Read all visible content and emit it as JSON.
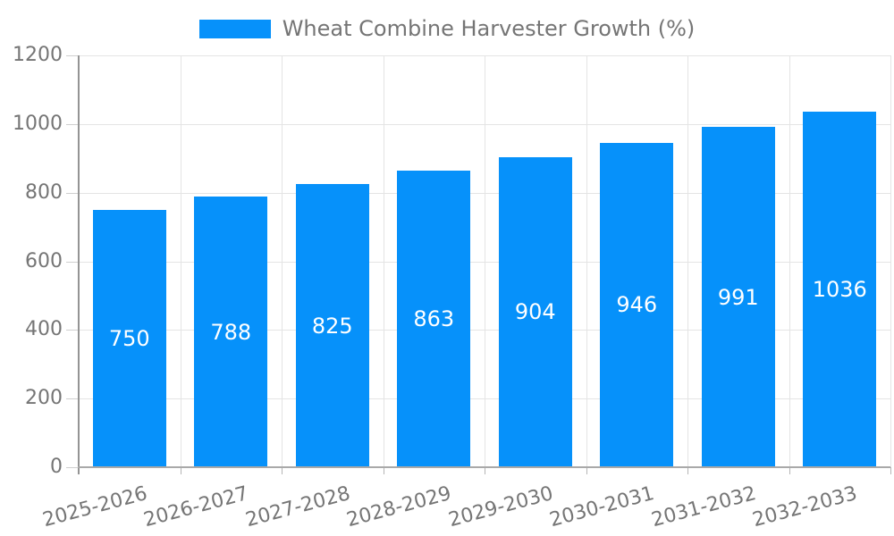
{
  "legend": {
    "label": "Wheat Combine Harvester Growth (%)"
  },
  "chart_data": {
    "type": "bar",
    "title": "",
    "series_name": "Wheat Combine Harvester Growth (%)",
    "categories": [
      "2025-2026",
      "2026-2027",
      "2027-2028",
      "2028-2029",
      "2029-2030",
      "2030-2031",
      "2031-2032",
      "2032-2033"
    ],
    "values": [
      750,
      788,
      825,
      863,
      904,
      946,
      991,
      1036
    ],
    "value_labels": [
      "750",
      "788",
      "825",
      "863",
      "904",
      "946",
      "991",
      "1036"
    ],
    "ytick_labels": [
      "0",
      "200",
      "400",
      "600",
      "800",
      "1000",
      "1200"
    ],
    "ylim": [
      0,
      1200
    ],
    "ytick_step": 200,
    "xlabel": "",
    "ylabel": "",
    "grid": true,
    "legend_position": "top-center",
    "x_tick_rotation_deg": -15,
    "colors": {
      "bar": "#0691fa",
      "value_label": "#ffffff",
      "axis_text": "#757575",
      "grid_line": "#e4e4e4",
      "axis_line": "#9e9e9e",
      "background": "#ffffff"
    }
  }
}
